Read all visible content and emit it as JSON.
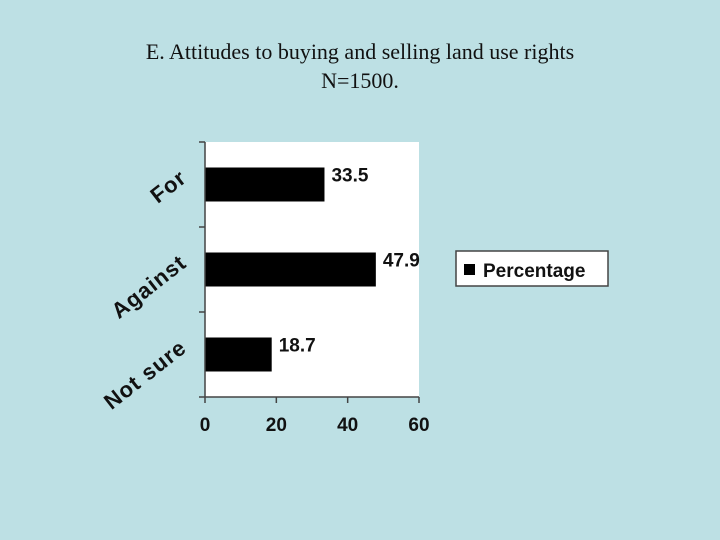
{
  "slide": {
    "background": "#bde0e4",
    "title_line1": "E. Attitudes to buying and selling land use rights",
    "title_line2": "N=1500."
  },
  "chart_data": {
    "type": "bar",
    "orientation": "horizontal",
    "categories": [
      "For",
      "Against",
      "Not sure"
    ],
    "series": [
      {
        "name": "Percentage",
        "values": [
          33.5,
          47.9,
          18.7
        ],
        "color": "#000000"
      }
    ],
    "data_labels": [
      "33.5",
      "47.9",
      "18.7"
    ],
    "xlim": [
      0,
      60
    ],
    "xticks": [
      0,
      20,
      40,
      60
    ],
    "xtick_labels": [
      "0",
      "20",
      "40",
      "60"
    ],
    "xlabel": "",
    "ylabel": "",
    "grid": false,
    "plot_background": "#ffffff",
    "legend": {
      "position": "right",
      "entries": [
        "Percentage"
      ]
    }
  }
}
